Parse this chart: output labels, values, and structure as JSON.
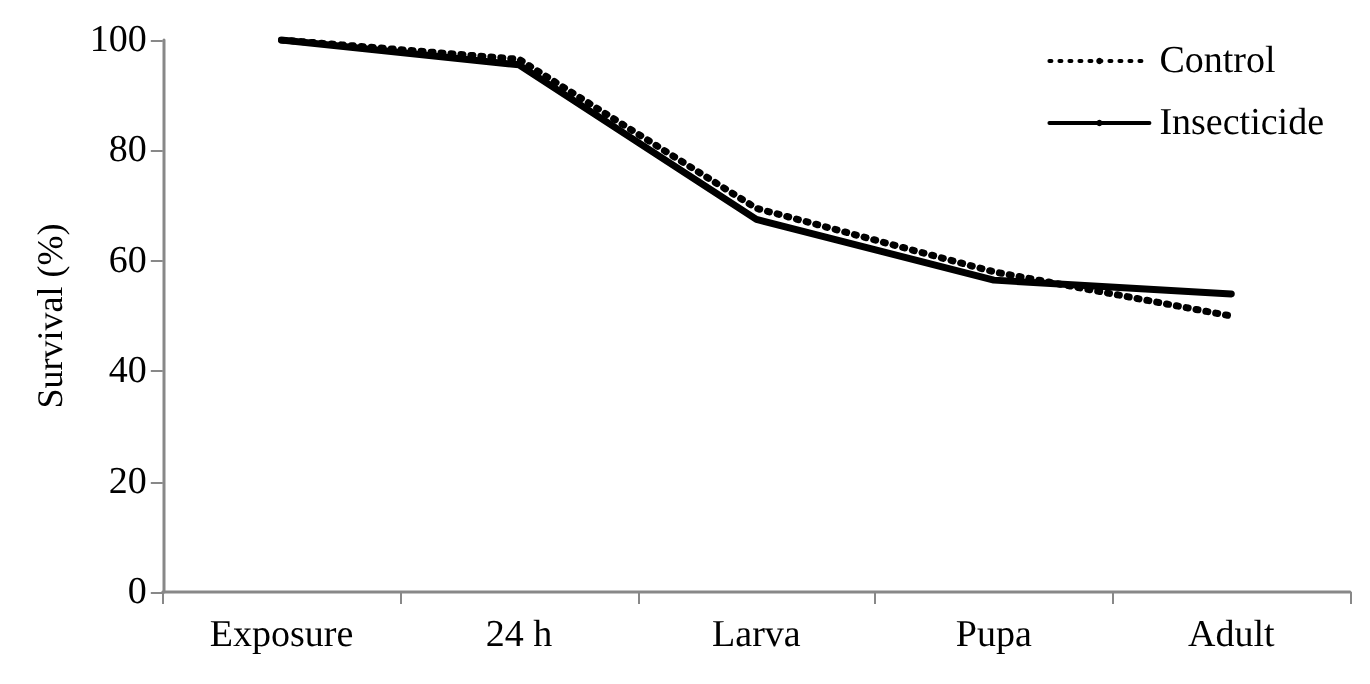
{
  "chart_data": {
    "type": "line",
    "ylabel": "Survival (%)",
    "categories": [
      "Exposure",
      "24 h",
      "Larva",
      "Pupa",
      "Adult"
    ],
    "series": [
      {
        "name": "Control",
        "color": "#000000",
        "line_style": "dotted",
        "values": [
          100,
          96.5,
          69.5,
          58,
          50
        ]
      },
      {
        "name": "Insecticide",
        "color": "#000000",
        "line_style": "solid",
        "values": [
          100,
          95.5,
          67.5,
          56.5,
          54
        ]
      }
    ],
    "ylim": [
      0,
      100
    ],
    "yticks": [
      0,
      20,
      40,
      60,
      80,
      100
    ],
    "grid": false,
    "legend": "top right",
    "marker": "none"
  }
}
